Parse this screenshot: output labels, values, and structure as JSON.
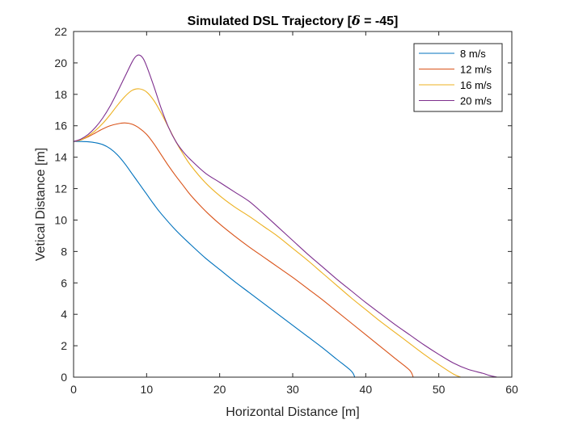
{
  "chart_data": {
    "type": "line",
    "title": "Simulated DSL Trajectory [δ = -45]",
    "title_parts": {
      "prefix": "Simulated DSL Trajectory [",
      "symbol": "δ",
      "suffix": " = -45]"
    },
    "xlabel": "Horizontal Distance [m]",
    "ylabel": "Vetical Distance [m]",
    "xlim": [
      0,
      60
    ],
    "ylim": [
      0,
      22
    ],
    "xticks": [
      "0",
      "10",
      "20",
      "30",
      "40",
      "50",
      "60"
    ],
    "yticks": [
      "0",
      "2",
      "4",
      "6",
      "8",
      "10",
      "12",
      "14",
      "16",
      "18",
      "20",
      "22"
    ],
    "grid": false,
    "legend_position": "top-right",
    "series": [
      {
        "name": "8 m/s",
        "color": "#0072BD",
        "points": [
          [
            0,
            15
          ],
          [
            1,
            15
          ],
          [
            2,
            14.98
          ],
          [
            3,
            14.92
          ],
          [
            4,
            14.8
          ],
          [
            5,
            14.55
          ],
          [
            6,
            14.15
          ],
          [
            7,
            13.6
          ],
          [
            8,
            12.95
          ],
          [
            9,
            12.3
          ],
          [
            10,
            11.65
          ],
          [
            11,
            11.0
          ],
          [
            12,
            10.4
          ],
          [
            14,
            9.35
          ],
          [
            16,
            8.45
          ],
          [
            18,
            7.6
          ],
          [
            20,
            6.85
          ],
          [
            22,
            6.1
          ],
          [
            24,
            5.4
          ],
          [
            26,
            4.7
          ],
          [
            28,
            4.0
          ],
          [
            30,
            3.3
          ],
          [
            32,
            2.6
          ],
          [
            34,
            1.9
          ],
          [
            36,
            1.15
          ],
          [
            38,
            0.4
          ],
          [
            38.5,
            0
          ]
        ]
      },
      {
        "name": "12 m/s",
        "color": "#D95319",
        "points": [
          [
            0,
            15
          ],
          [
            1,
            15.1
          ],
          [
            2,
            15.3
          ],
          [
            3,
            15.55
          ],
          [
            4,
            15.8
          ],
          [
            5,
            16.0
          ],
          [
            6,
            16.12
          ],
          [
            7,
            16.18
          ],
          [
            8,
            16.1
          ],
          [
            9,
            15.85
          ],
          [
            10,
            15.45
          ],
          [
            11,
            14.85
          ],
          [
            12,
            14.15
          ],
          [
            13,
            13.45
          ],
          [
            14,
            12.8
          ],
          [
            15,
            12.2
          ],
          [
            16,
            11.6
          ],
          [
            18,
            10.6
          ],
          [
            20,
            9.75
          ],
          [
            22,
            9.0
          ],
          [
            24,
            8.3
          ],
          [
            26,
            7.65
          ],
          [
            28,
            7.0
          ],
          [
            30,
            6.35
          ],
          [
            32,
            5.65
          ],
          [
            34,
            4.95
          ],
          [
            36,
            4.2
          ],
          [
            38,
            3.45
          ],
          [
            40,
            2.7
          ],
          [
            42,
            1.95
          ],
          [
            44,
            1.2
          ],
          [
            46,
            0.45
          ],
          [
            46.5,
            0
          ]
        ]
      },
      {
        "name": "16 m/s",
        "color": "#EDB120",
        "points": [
          [
            0,
            15
          ],
          [
            1,
            15.1
          ],
          [
            2,
            15.35
          ],
          [
            3,
            15.7
          ],
          [
            4,
            16.15
          ],
          [
            5,
            16.7
          ],
          [
            6,
            17.3
          ],
          [
            7,
            17.85
          ],
          [
            8,
            18.25
          ],
          [
            9,
            18.35
          ],
          [
            10,
            18.15
          ],
          [
            11,
            17.6
          ],
          [
            12,
            16.8
          ],
          [
            13,
            15.9
          ],
          [
            14,
            15.0
          ],
          [
            15,
            14.2
          ],
          [
            16,
            13.5
          ],
          [
            18,
            12.4
          ],
          [
            20,
            11.55
          ],
          [
            22,
            10.85
          ],
          [
            24,
            10.25
          ],
          [
            26,
            9.6
          ],
          [
            28,
            8.95
          ],
          [
            30,
            8.2
          ],
          [
            32,
            7.45
          ],
          [
            34,
            6.65
          ],
          [
            36,
            5.85
          ],
          [
            38,
            5.05
          ],
          [
            40,
            4.3
          ],
          [
            42,
            3.55
          ],
          [
            44,
            2.85
          ],
          [
            46,
            2.15
          ],
          [
            48,
            1.45
          ],
          [
            50,
            0.8
          ],
          [
            52,
            0.2
          ],
          [
            53,
            0
          ]
        ]
      },
      {
        "name": "20 m/s",
        "color": "#7E2F8E",
        "points": [
          [
            0,
            15
          ],
          [
            1,
            15.15
          ],
          [
            2,
            15.45
          ],
          [
            3,
            15.9
          ],
          [
            4,
            16.5
          ],
          [
            5,
            17.25
          ],
          [
            6,
            18.15
          ],
          [
            7,
            19.1
          ],
          [
            8,
            20.05
          ],
          [
            8.5,
            20.4
          ],
          [
            9,
            20.5
          ],
          [
            9.5,
            20.3
          ],
          [
            10,
            19.8
          ],
          [
            11,
            18.5
          ],
          [
            12,
            17.1
          ],
          [
            13,
            15.9
          ],
          [
            14,
            15.0
          ],
          [
            15,
            14.35
          ],
          [
            16,
            13.85
          ],
          [
            18,
            13.0
          ],
          [
            20,
            12.4
          ],
          [
            22,
            11.8
          ],
          [
            24,
            11.2
          ],
          [
            26,
            10.4
          ],
          [
            28,
            9.55
          ],
          [
            30,
            8.7
          ],
          [
            32,
            7.85
          ],
          [
            34,
            7.05
          ],
          [
            36,
            6.25
          ],
          [
            38,
            5.5
          ],
          [
            40,
            4.75
          ],
          [
            42,
            4.05
          ],
          [
            44,
            3.35
          ],
          [
            46,
            2.7
          ],
          [
            48,
            2.05
          ],
          [
            50,
            1.45
          ],
          [
            52,
            0.9
          ],
          [
            54,
            0.5
          ],
          [
            56,
            0.25
          ],
          [
            57,
            0.1
          ],
          [
            58,
            0
          ]
        ]
      }
    ]
  }
}
